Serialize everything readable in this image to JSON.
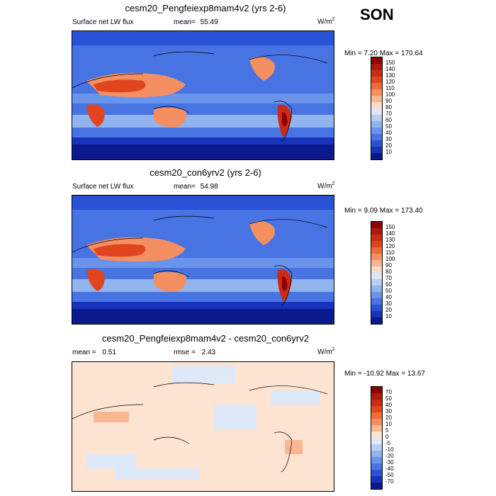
{
  "season": "SON",
  "panels": [
    {
      "title": "cesm20_Pengfeiexp8mam4v2 (yrs 2-6)",
      "left_label": "Surface net LW flux",
      "mean_label": "mean=",
      "mean_value": "55.49",
      "units_base": "W/m",
      "units_exp": "2",
      "minmax": "Min =   7.20 Max = 170.64",
      "colorbar_ticks": [
        "150",
        "140",
        "130",
        "120",
        "110",
        "100",
        "90",
        "80",
        "70",
        "60",
        "50",
        "40",
        "30",
        "20",
        "10"
      ],
      "colors": [
        "#8b0000",
        "#b0180a",
        "#cc2a14",
        "#e0451f",
        "#ee6a3a",
        "#f48f62",
        "#f8b792",
        "#fadcc8",
        "#dde7f7",
        "#b9cff2",
        "#91b3ee",
        "#6a94ea",
        "#4773e3",
        "#2a52d6",
        "#1733bb",
        "#0a1a8c"
      ]
    },
    {
      "title": "cesm20_con6yrv2 (yrs 2-6)",
      "left_label": "Surface net LW flux",
      "mean_label": "mean=",
      "mean_value": "54.98",
      "units_base": "W/m",
      "units_exp": "2",
      "minmax": "Min =   9.09 Max = 173.40",
      "colorbar_ticks": [
        "150",
        "140",
        "130",
        "120",
        "110",
        "100",
        "90",
        "80",
        "70",
        "60",
        "50",
        "40",
        "30",
        "20",
        "10"
      ],
      "colors": [
        "#8b0000",
        "#b0180a",
        "#cc2a14",
        "#e0451f",
        "#ee6a3a",
        "#f48f62",
        "#f8b792",
        "#fadcc8",
        "#dde7f7",
        "#b9cff2",
        "#91b3ee",
        "#6a94ea",
        "#4773e3",
        "#2a52d6",
        "#1733bb",
        "#0a1a8c"
      ]
    },
    {
      "title": "cesm20_Pengfeiexp8mam4v2 - cesm20_con6yrv2",
      "left_label": "mean =",
      "left_value": "0.51",
      "mean_label": "rmse =",
      "mean_value": "2.43",
      "units_base": "W/m",
      "units_exp": "2",
      "minmax": "Min = -10.92 Max =  13.67",
      "colorbar_ticks": [
        "70",
        "50",
        "40",
        "30",
        "20",
        "10",
        "5",
        "0",
        "-5",
        "-10",
        "-20",
        "-30",
        "-40",
        "-50",
        "-70"
      ],
      "colors": [
        "#8b0000",
        "#b0180a",
        "#cc2a14",
        "#e0451f",
        "#ee6a3a",
        "#f48f62",
        "#f8b792",
        "#fde3d2",
        "#dde9f8",
        "#b9cff2",
        "#91b3ee",
        "#6a94ea",
        "#4773e3",
        "#2a52d6",
        "#1733bb",
        "#0a1a8c"
      ]
    }
  ]
}
